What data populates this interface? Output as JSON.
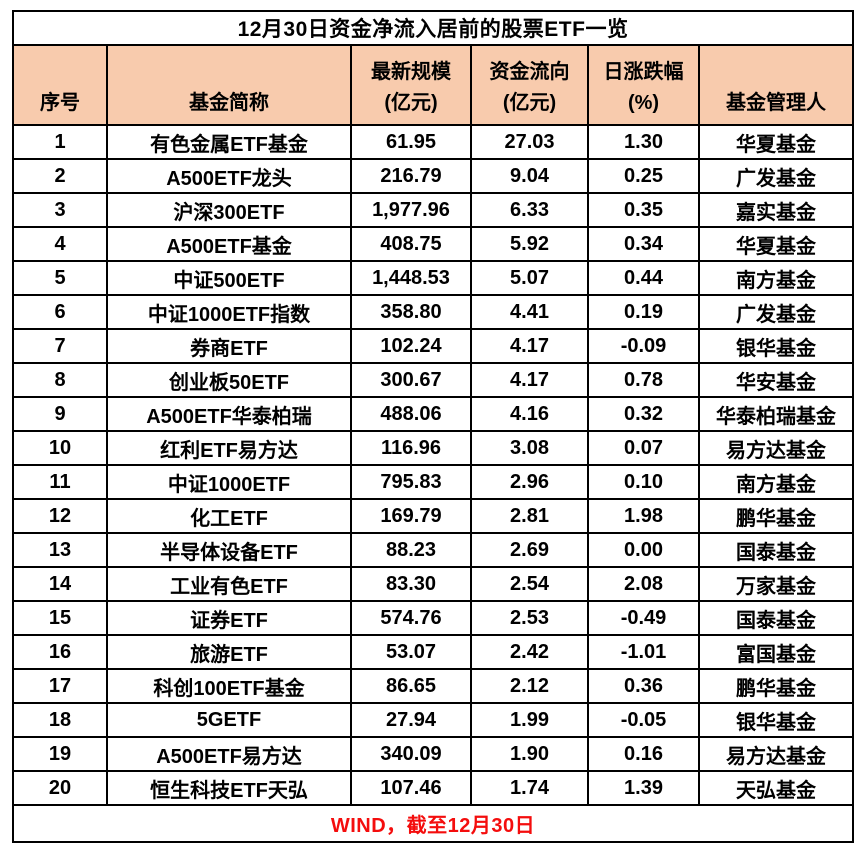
{
  "colors": {
    "header_bg": "#F8CBAD",
    "border_color": "#000000",
    "text_color": "#000000",
    "source_color": "#F40D0D",
    "page_bg": "#FFFFFF"
  },
  "chart_data": {
    "type": "table",
    "title": "12月30日资金净流入居前的股票ETF一览",
    "source": "WIND，截至12月30日",
    "columns": [
      {
        "key": "index",
        "label": "序号",
        "sub": ""
      },
      {
        "key": "fund_name",
        "label": "基金简称",
        "sub": ""
      },
      {
        "key": "latest_scale",
        "label": "最新规模",
        "sub": "(亿元)"
      },
      {
        "key": "fund_flow",
        "label": "资金流向",
        "sub": "(亿元)"
      },
      {
        "key": "daily_change",
        "label": "日涨跌幅",
        "sub": "(%)"
      },
      {
        "key": "fund_manager",
        "label": "基金管理人",
        "sub": ""
      }
    ],
    "column_keys": [
      "index",
      "fund_name",
      "latest_scale",
      "fund_flow",
      "daily_change",
      "fund_manager"
    ],
    "rows": [
      [
        "1",
        "有色金属ETF基金",
        "61.95",
        "27.03",
        "1.30",
        "华夏基金"
      ],
      [
        "2",
        "A500ETF龙头",
        "216.79",
        "9.04",
        "0.25",
        "广发基金"
      ],
      [
        "3",
        "沪深300ETF",
        "1,977.96",
        "6.33",
        "0.35",
        "嘉实基金"
      ],
      [
        "4",
        "A500ETF基金",
        "408.75",
        "5.92",
        "0.34",
        "华夏基金"
      ],
      [
        "5",
        "中证500ETF",
        "1,448.53",
        "5.07",
        "0.44",
        "南方基金"
      ],
      [
        "6",
        "中证1000ETF指数",
        "358.80",
        "4.41",
        "0.19",
        "广发基金"
      ],
      [
        "7",
        "券商ETF",
        "102.24",
        "4.17",
        "-0.09",
        "银华基金"
      ],
      [
        "8",
        "创业板50ETF",
        "300.67",
        "4.17",
        "0.78",
        "华安基金"
      ],
      [
        "9",
        "A500ETF华泰柏瑞",
        "488.06",
        "4.16",
        "0.32",
        "华泰柏瑞基金"
      ],
      [
        "10",
        "红利ETF易方达",
        "116.96",
        "3.08",
        "0.07",
        "易方达基金"
      ],
      [
        "11",
        "中证1000ETF",
        "795.83",
        "2.96",
        "0.10",
        "南方基金"
      ],
      [
        "12",
        "化工ETF",
        "169.79",
        "2.81",
        "1.98",
        "鹏华基金"
      ],
      [
        "13",
        "半导体设备ETF",
        "88.23",
        "2.69",
        "0.00",
        "国泰基金"
      ],
      [
        "14",
        "工业有色ETF",
        "83.30",
        "2.54",
        "2.08",
        "万家基金"
      ],
      [
        "15",
        "证券ETF",
        "574.76",
        "2.53",
        "-0.49",
        "国泰基金"
      ],
      [
        "16",
        "旅游ETF",
        "53.07",
        "2.42",
        "-1.01",
        "富国基金"
      ],
      [
        "17",
        "科创100ETF基金",
        "86.65",
        "2.12",
        "0.36",
        "鹏华基金"
      ],
      [
        "18",
        "5GETF",
        "27.94",
        "1.99",
        "-0.05",
        "银华基金"
      ],
      [
        "19",
        "A500ETF易方达",
        "340.09",
        "1.90",
        "0.16",
        "易方达基金"
      ],
      [
        "20",
        "恒生科技ETF天弘",
        "107.46",
        "1.74",
        "1.39",
        "天弘基金"
      ]
    ]
  }
}
